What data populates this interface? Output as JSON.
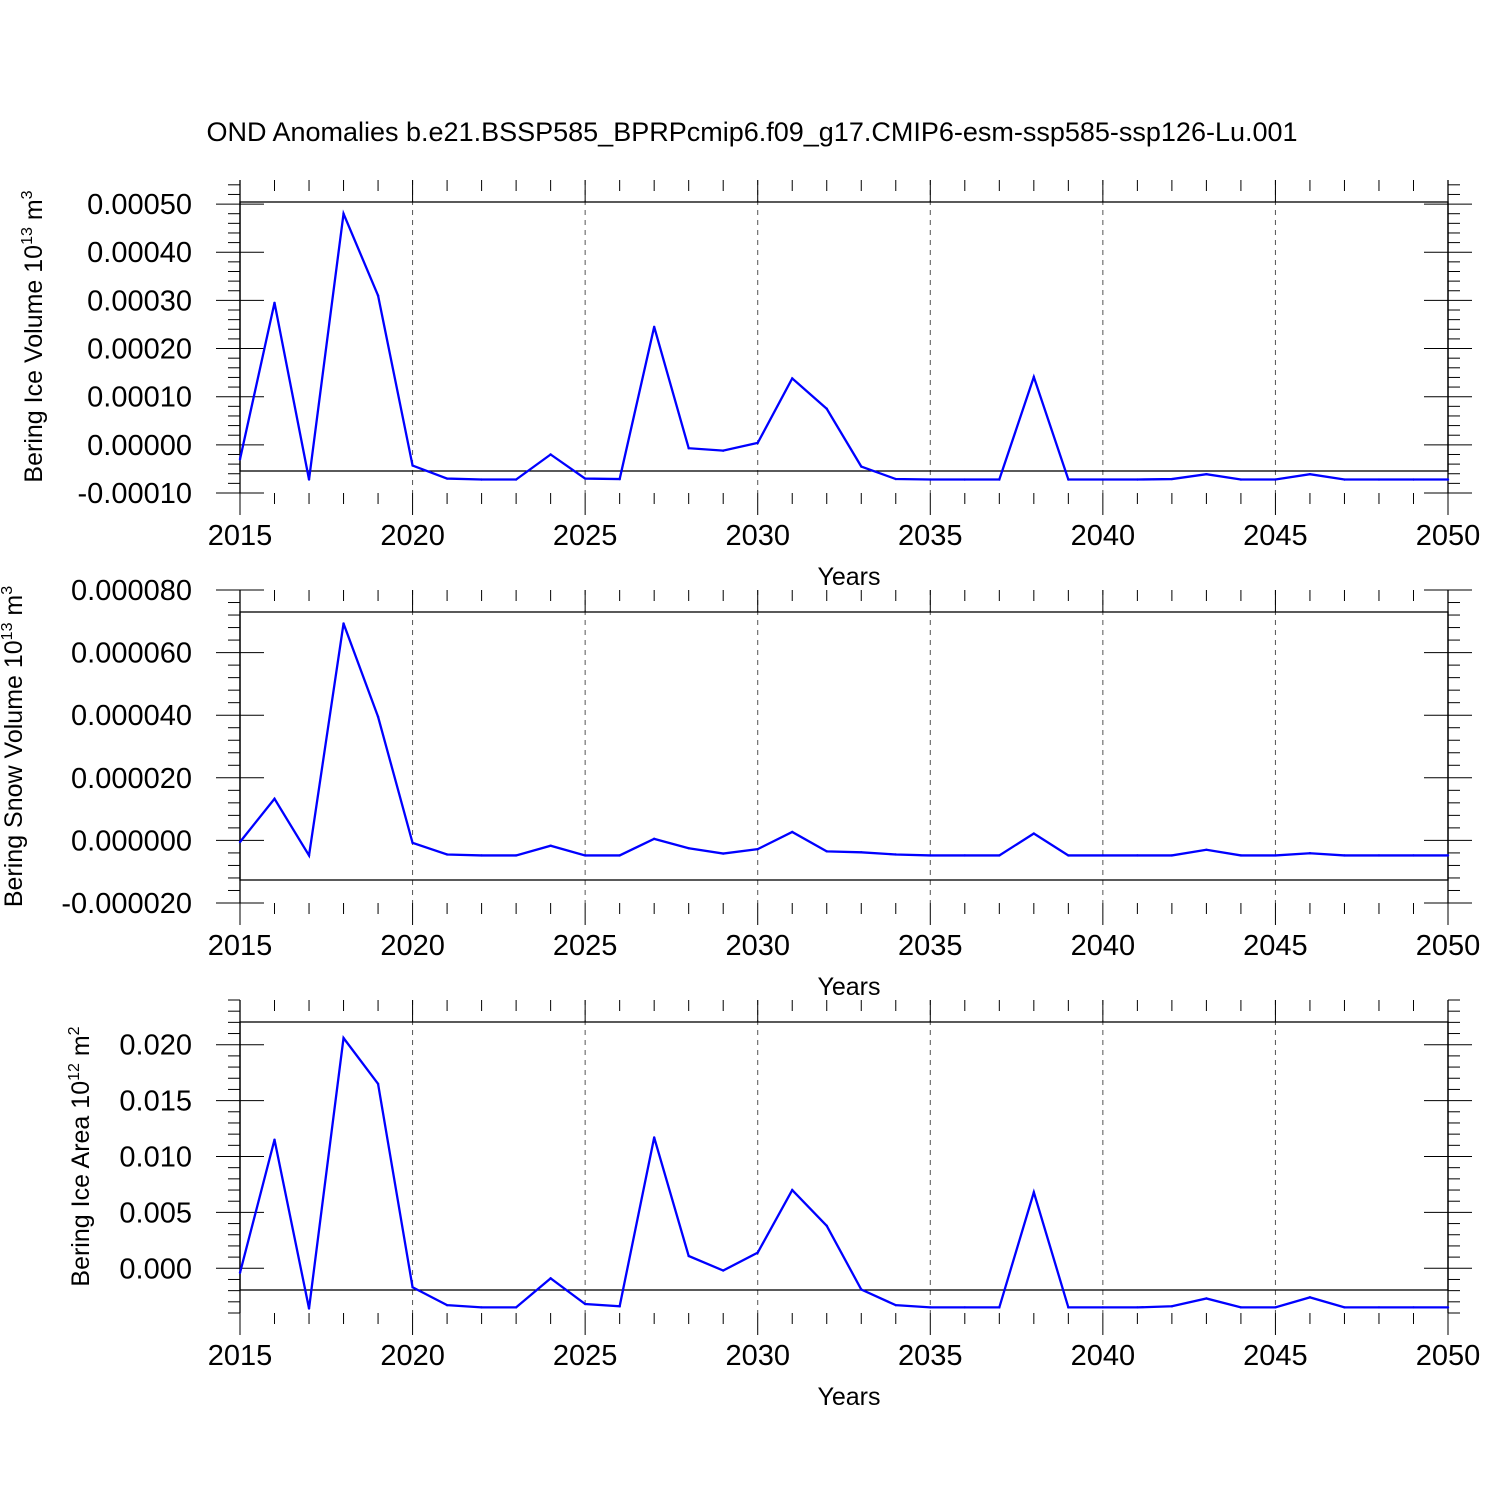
{
  "title": "OND Anomalies b.e21.BSSP585_BPRPcmip6.f09_g17.CMIP6-esm-ssp585-ssp126-Lu.001",
  "colors": {
    "line": "#0000ff",
    "axis": "#000000",
    "grid": "#555555"
  },
  "chart_data": [
    {
      "type": "line",
      "ylabel": {
        "main": "Bering Ice Volume 10",
        "exp": "13",
        "unit": " m",
        "unit_exp": "3"
      },
      "xlabel": "Years",
      "xlim": [
        2015,
        2050
      ],
      "ylim": [
        -0.0001,
        0.00055
      ],
      "xticks": [
        "2015",
        "2020",
        "2025",
        "2030",
        "2035",
        "2040",
        "2045",
        "2050"
      ],
      "yticks": [
        {
          "v": 0.0005,
          "label": "0.00050"
        },
        {
          "v": 0.0004,
          "label": "0.00040"
        },
        {
          "v": 0.0003,
          "label": "0.00030"
        },
        {
          "v": 0.0002,
          "label": "0.00020"
        },
        {
          "v": 0.0001,
          "label": "0.00010"
        },
        {
          "v": 0.0,
          "label": "0.00000"
        },
        {
          "v": -0.0001,
          "label": "-0.00010"
        }
      ],
      "x": [
        2015,
        2016,
        2017,
        2018,
        2019,
        2020,
        2021,
        2022,
        2023,
        2024,
        2025,
        2026,
        2027,
        2028,
        2029,
        2030,
        2031,
        2032,
        2033,
        2034,
        2035,
        2036,
        2037,
        2038,
        2039,
        2040,
        2041,
        2042,
        2043,
        2044,
        2045,
        2046,
        2047,
        2048,
        2049,
        2050
      ],
      "values": [
        -3e-05,
        0.000295,
        -7.2e-05,
        0.00048,
        0.00031,
        -4.3e-05,
        -7e-05,
        -7.2e-05,
        -7.2e-05,
        -2e-05,
        -7e-05,
        -7.1e-05,
        0.000245,
        -7e-06,
        -1.2e-05,
        4e-06,
        0.000138,
        7.5e-05,
        -4.5e-05,
        -7.1e-05,
        -7.2e-05,
        -7.2e-05,
        -7.2e-05,
        0.000141,
        -7.2e-05,
        -7.2e-05,
        -7.2e-05,
        -7.1e-05,
        -6.1e-05,
        -7.2e-05,
        -7.2e-05,
        -6.1e-05,
        -7.2e-05,
        -7.2e-05,
        -7.2e-05,
        -7.2e-05
      ]
    },
    {
      "type": "line",
      "ylabel": {
        "main": "Bering Snow Volume 10",
        "exp": "13",
        "unit": " m",
        "unit_exp": "3"
      },
      "xlabel": "Years",
      "xlim": [
        2015,
        2050
      ],
      "ylim": [
        -2e-05,
        8e-05
      ],
      "xticks": [
        "2015",
        "2020",
        "2025",
        "2030",
        "2035",
        "2040",
        "2045",
        "2050"
      ],
      "yticks": [
        {
          "v": 8e-05,
          "label": "0.000080"
        },
        {
          "v": 6e-05,
          "label": "0.000060"
        },
        {
          "v": 4e-05,
          "label": "0.000040"
        },
        {
          "v": 2e-05,
          "label": "0.000020"
        },
        {
          "v": 0.0,
          "label": "0.000000"
        },
        {
          "v": -2e-05,
          "label": "-0.000020"
        }
      ],
      "x": [
        2015,
        2016,
        2017,
        2018,
        2019,
        2020,
        2021,
        2022,
        2023,
        2024,
        2025,
        2026,
        2027,
        2028,
        2029,
        2030,
        2031,
        2032,
        2033,
        2034,
        2035,
        2036,
        2037,
        2038,
        2039,
        2040,
        2041,
        2042,
        2043,
        2044,
        2045,
        2046,
        2047,
        2048,
        2049,
        2050
      ],
      "values": [
        -5e-07,
        1.33e-05,
        -4.8e-06,
        6.93e-05,
        3.95e-05,
        -8e-07,
        -4.5e-06,
        -4.8e-06,
        -4.8e-06,
        -1.7e-06,
        -4.8e-06,
        -4.8e-06,
        5e-07,
        -2.5e-06,
        -4.2e-06,
        -2.8e-06,
        2.7e-06,
        -3.5e-06,
        -3.8e-06,
        -4.5e-06,
        -4.8e-06,
        -4.8e-06,
        -4.8e-06,
        2.2e-06,
        -4.8e-06,
        -4.8e-06,
        -4.8e-06,
        -4.8e-06,
        -3e-06,
        -4.8e-06,
        -4.8e-06,
        -4.1e-06,
        -4.8e-06,
        -4.8e-06,
        -4.8e-06,
        -4.8e-06
      ]
    },
    {
      "type": "line",
      "ylabel": {
        "main": "Bering Ice Area 10",
        "exp": "12",
        "unit": " m",
        "unit_exp": "2"
      },
      "xlabel": "Years",
      "xlim": [
        2015,
        2050
      ],
      "ylim": [
        -0.004,
        0.024
      ],
      "xticks": [
        "2015",
        "2020",
        "2025",
        "2030",
        "2035",
        "2040",
        "2045",
        "2050"
      ],
      "yticks": [
        {
          "v": 0.02,
          "label": "0.020"
        },
        {
          "v": 0.015,
          "label": "0.015"
        },
        {
          "v": 0.01,
          "label": "0.010"
        },
        {
          "v": 0.005,
          "label": "0.005"
        },
        {
          "v": 0.0,
          "label": "0.000"
        }
      ],
      "x": [
        2015,
        2016,
        2017,
        2018,
        2019,
        2020,
        2021,
        2022,
        2023,
        2024,
        2025,
        2026,
        2027,
        2028,
        2029,
        2030,
        2031,
        2032,
        2033,
        2034,
        2035,
        2036,
        2037,
        2038,
        2039,
        2040,
        2041,
        2042,
        2043,
        2044,
        2045,
        2046,
        2047,
        2048,
        2049,
        2050
      ],
      "values": [
        -0.0004,
        0.0115,
        -0.0036,
        0.0206,
        0.0165,
        -0.0017,
        -0.0033,
        -0.0035,
        -0.0035,
        -0.0009,
        -0.0032,
        -0.0034,
        0.0117,
        0.0011,
        -0.0002,
        0.0014,
        0.007,
        0.0038,
        -0.0019,
        -0.0033,
        -0.0035,
        -0.0035,
        -0.0035,
        0.0068,
        -0.0035,
        -0.0035,
        -0.0035,
        -0.0034,
        -0.0027,
        -0.0035,
        -0.0035,
        -0.0026,
        -0.0035,
        -0.0035,
        -0.0035,
        -0.0035
      ]
    }
  ]
}
